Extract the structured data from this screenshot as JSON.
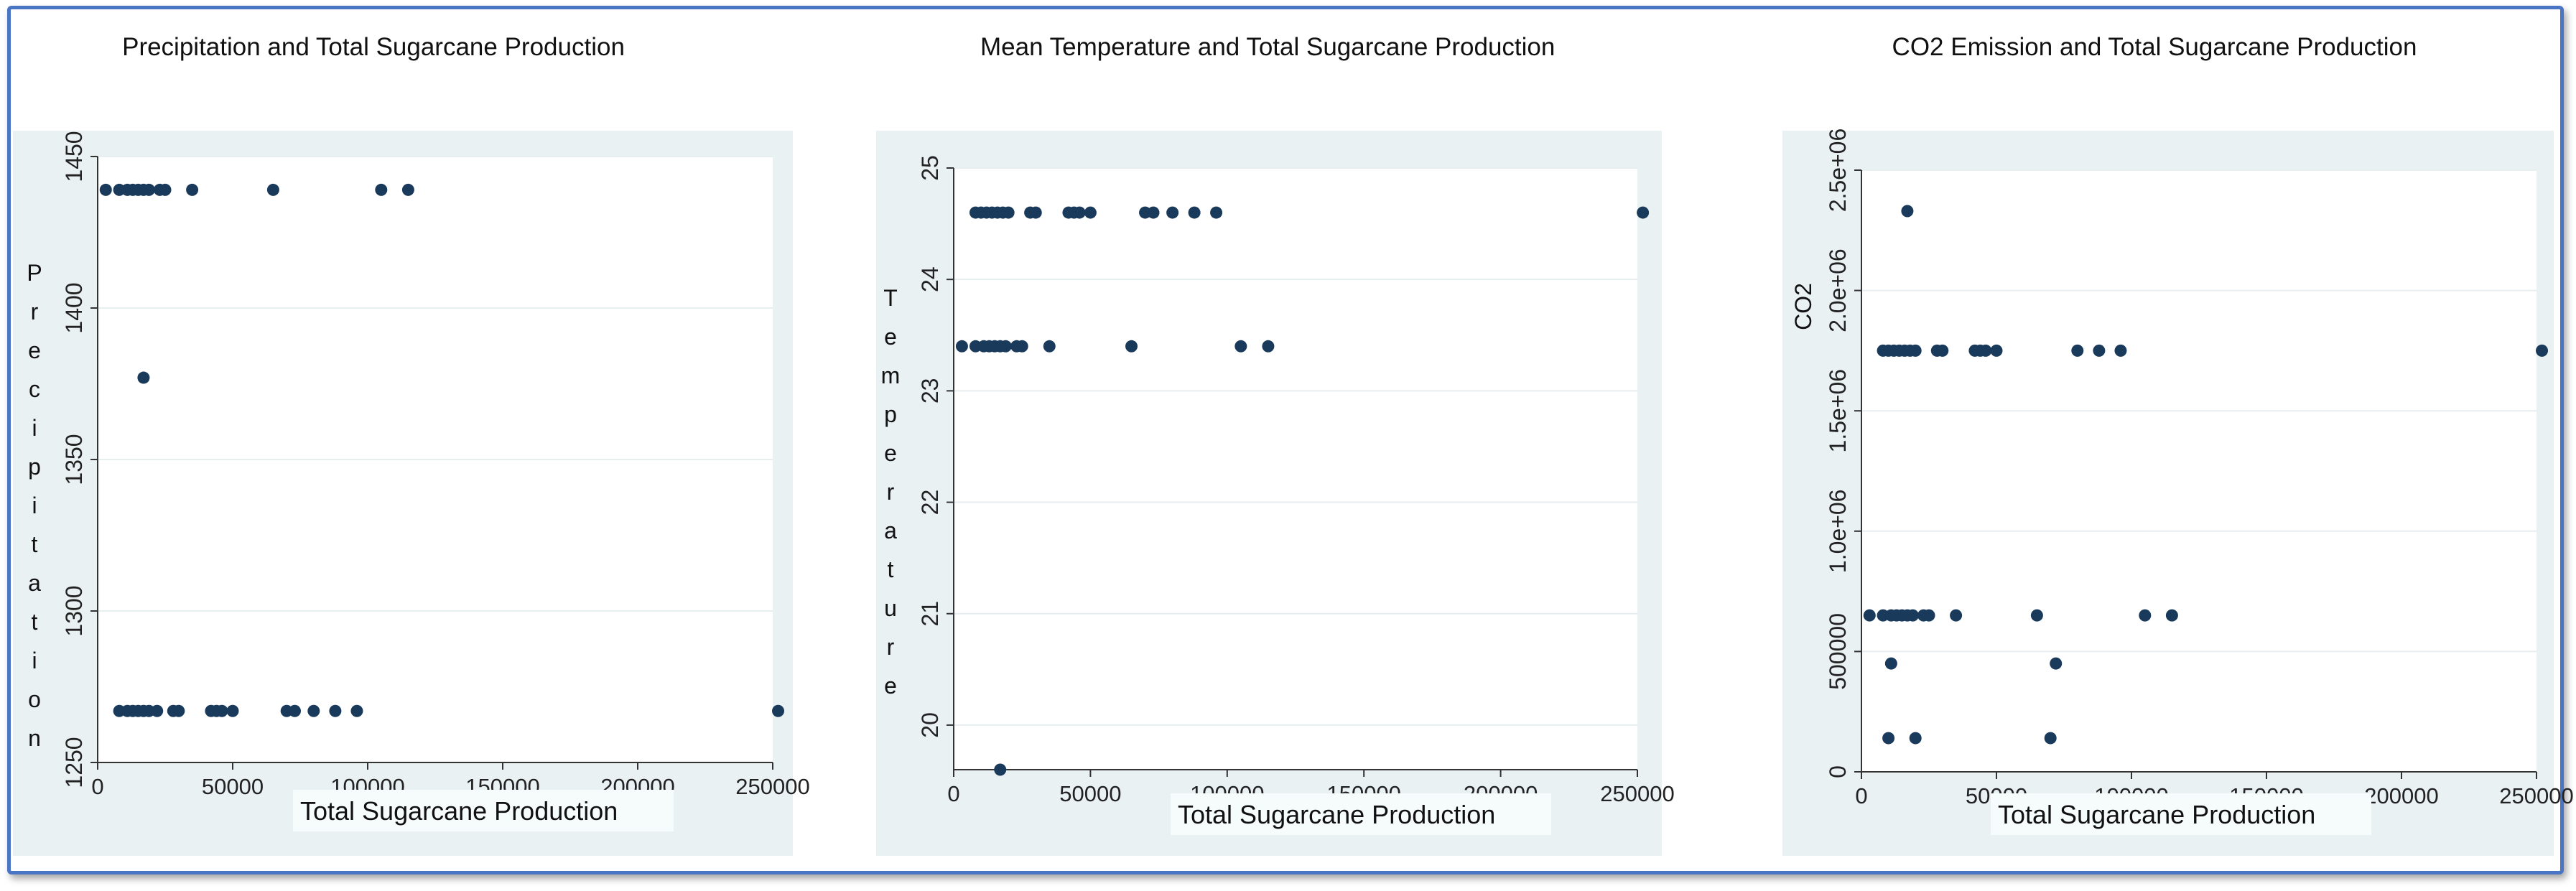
{
  "colors": {
    "frame": "#4a74c4",
    "panel": "#eaf1f3",
    "plot": "#ffffff",
    "grid": "#e6eef0",
    "marker": "#1a3a5c",
    "axis": "#333333"
  },
  "chart_data": [
    {
      "type": "scatter",
      "title": "Precipitation and Total Sugarcane Production",
      "xlabel": "Total Sugarcane Production",
      "ylabel": "Precipitation",
      "xlim": [
        0,
        250000
      ],
      "ylim": [
        1250,
        1450
      ],
      "xticks": [
        "0",
        "50000",
        "100000",
        "150000",
        "200000",
        "250000"
      ],
      "yticks": [
        "1250",
        "1300",
        "1350",
        "1400",
        "1450"
      ],
      "x": [
        3000,
        8000,
        11000,
        13000,
        15000,
        17000,
        19000,
        23000,
        25000,
        35000,
        65000,
        105000,
        115000,
        17000,
        8000,
        11000,
        13000,
        15000,
        17000,
        19000,
        22000,
        28000,
        30000,
        42000,
        44000,
        46000,
        50000,
        70000,
        73000,
        80000,
        88000,
        96000,
        252000
      ],
      "y": [
        1439,
        1439,
        1439,
        1439,
        1439,
        1439,
        1439,
        1439,
        1439,
        1439,
        1439,
        1439,
        1439,
        1377,
        1267,
        1267,
        1267,
        1267,
        1267,
        1267,
        1267,
        1267,
        1267,
        1267,
        1267,
        1267,
        1267,
        1267,
        1267,
        1267,
        1267,
        1267,
        1267
      ]
    },
    {
      "type": "scatter",
      "title": "Mean Temperature and Total Sugarcane Production",
      "xlabel": "Total Sugarcane Production",
      "ylabel": "Temperature",
      "xlim": [
        0,
        250000
      ],
      "ylim": [
        19.6,
        25
      ],
      "xticks": [
        "0",
        "50000",
        "100000",
        "150000",
        "200000",
        "250000"
      ],
      "yticks": [
        "20",
        "21",
        "22",
        "23",
        "24",
        "25"
      ],
      "x": [
        8000,
        10000,
        12000,
        14000,
        16000,
        18000,
        20000,
        28000,
        30000,
        42000,
        44000,
        46000,
        50000,
        70000,
        73000,
        80000,
        88000,
        96000,
        252000,
        3000,
        8000,
        11000,
        13000,
        15000,
        17000,
        19000,
        23000,
        25000,
        35000,
        65000,
        105000,
        115000,
        17000
      ],
      "y": [
        24.6,
        24.6,
        24.6,
        24.6,
        24.6,
        24.6,
        24.6,
        24.6,
        24.6,
        24.6,
        24.6,
        24.6,
        24.6,
        24.6,
        24.6,
        24.6,
        24.6,
        24.6,
        24.6,
        23.4,
        23.4,
        23.4,
        23.4,
        23.4,
        23.4,
        23.4,
        23.4,
        23.4,
        23.4,
        23.4,
        23.4,
        23.4,
        19.6
      ]
    },
    {
      "type": "scatter",
      "title": "CO2 Emission and Total Sugarcane Production",
      "xlabel": "Total Sugarcane Production",
      "ylabel": "CO2",
      "xlim": [
        0,
        250000
      ],
      "ylim": [
        0,
        2500000
      ],
      "xticks": [
        "0",
        "50000",
        "100000",
        "150000",
        "200000",
        "250000"
      ],
      "yticks": [
        "0",
        "500000",
        "1.0e+06",
        "1.5e+06",
        "2.0e+06",
        "2.5e+06"
      ],
      "x": [
        17000,
        8000,
        10000,
        12000,
        14000,
        16000,
        18000,
        20000,
        28000,
        30000,
        42000,
        44000,
        46000,
        50000,
        80000,
        88000,
        96000,
        252000,
        3000,
        8000,
        11000,
        13000,
        15000,
        17000,
        19000,
        23000,
        25000,
        35000,
        65000,
        105000,
        115000,
        11000,
        72000,
        10000,
        20000,
        70000
      ],
      "y": [
        2330000,
        1750000,
        1750000,
        1750000,
        1750000,
        1750000,
        1750000,
        1750000,
        1750000,
        1750000,
        1750000,
        1750000,
        1750000,
        1750000,
        1750000,
        1750000,
        1750000,
        1750000,
        650000,
        650000,
        650000,
        650000,
        650000,
        650000,
        650000,
        650000,
        650000,
        650000,
        650000,
        650000,
        650000,
        450000,
        450000,
        140000,
        140000,
        140000
      ]
    }
  ]
}
